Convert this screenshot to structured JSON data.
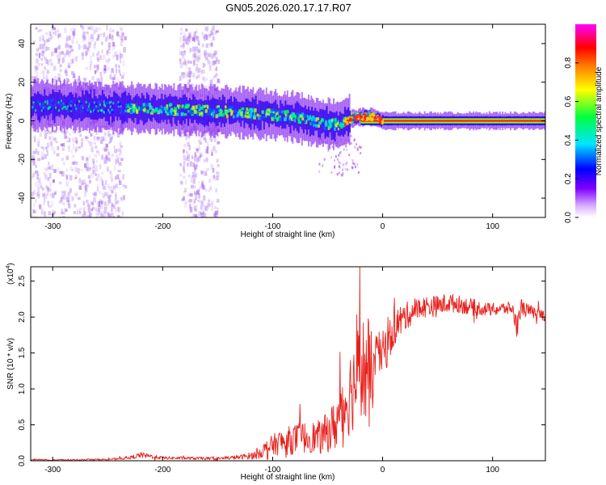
{
  "figure_title": "GN05.2026.020.17.17.R07",
  "colors": {
    "snr_line": "#e8201c",
    "axis": "#000000",
    "background": "#ffffff"
  },
  "chart_data": [
    {
      "type": "heatmap",
      "panel": "top",
      "title": "GN05.2026.020.17.17.R07",
      "xlabel": "Height of straight line (km)",
      "ylabel": "Frequency (Hz)",
      "xlim": [
        -320,
        148
      ],
      "ylim": [
        -50,
        50
      ],
      "xticks": [
        -300,
        -200,
        -100,
        0,
        100
      ],
      "xtick_labels": [
        "-300",
        "-200",
        "-100",
        "0",
        "100"
      ],
      "yticks": [
        -40,
        -20,
        0,
        20,
        40
      ],
      "ytick_labels": [
        "-40",
        "-20",
        "0",
        "20",
        "40"
      ],
      "colorbar": {
        "label": "Normalized spectral amplitude",
        "range": [
          0,
          1
        ],
        "ticks": [
          0.0,
          0.2,
          0.4,
          0.6,
          0.8
        ],
        "tick_labels": [
          "0.0",
          "0.2",
          "0.4",
          "0.6",
          "0.8"
        ],
        "colormap": [
          "#ffffff",
          "#7f00ff",
          "#0000ff",
          "#00e5ff",
          "#00ff00",
          "#ffff00",
          "#ff8000",
          "#ff0000",
          "#ff00ff"
        ]
      },
      "ridge": {
        "x": [
          -320,
          -300,
          -250,
          -200,
          -150,
          -120,
          -100,
          -80,
          -60,
          -40,
          -30,
          -20,
          -10,
          0,
          50,
          100,
          120,
          130,
          148
        ],
        "y": [
          8,
          8,
          7,
          6,
          5,
          4,
          3,
          2,
          -1,
          -2,
          1,
          2,
          2,
          0,
          0,
          0,
          0,
          0,
          0
        ]
      },
      "scatter_bands_x": [
        [
          -320,
          -235
        ],
        [
          -185,
          -150
        ]
      ]
    },
    {
      "type": "line",
      "panel": "bottom",
      "xlabel": "Height of straight line (km)",
      "ylabel": "SNR (10 * v/v)",
      "scale_label": "(x10",
      "scale_exponent": "4",
      "xlim": [
        -320,
        148
      ],
      "ylim": [
        0,
        2.7
      ],
      "xticks": [
        -300,
        -200,
        -100,
        0,
        100
      ],
      "xtick_labels": [
        "-300",
        "-200",
        "-100",
        "0",
        "100"
      ],
      "yticks": [
        0,
        0.5,
        1.0,
        1.5,
        2.0,
        2.5
      ],
      "ytick_labels": [
        "0.0",
        "0.5",
        "1.0",
        "1.5",
        "2.0",
        "2.5"
      ],
      "series": [
        {
          "name": "SNR",
          "x": [
            -320,
            -300,
            -250,
            -230,
            -220,
            -200,
            -150,
            -130,
            -115,
            -105,
            -95,
            -85,
            -75,
            -65,
            -55,
            -50,
            -45,
            -40,
            -35,
            -30,
            -25,
            -20,
            -15,
            -12,
            -10,
            -8,
            -5,
            0,
            5,
            10,
            20,
            30,
            40,
            50,
            60,
            70,
            80,
            90,
            100,
            110,
            118,
            122,
            126,
            130,
            140,
            148
          ],
          "y": [
            0.02,
            0.01,
            0.02,
            0.04,
            0.08,
            0.04,
            0.03,
            0.05,
            0.08,
            0.18,
            0.25,
            0.28,
            0.32,
            0.33,
            0.32,
            0.42,
            0.45,
            0.6,
            0.75,
            0.95,
            1.1,
            1.35,
            1.2,
            1.3,
            1.15,
            1.3,
            1.45,
            1.5,
            1.62,
            1.85,
            2.0,
            2.1,
            2.15,
            2.15,
            2.2,
            2.18,
            2.14,
            2.12,
            2.1,
            2.12,
            2.12,
            1.85,
            2.15,
            2.1,
            2.05,
            2.02
          ],
          "noise_amp": [
            0.01,
            0.01,
            0.01,
            0.02,
            0.04,
            0.02,
            0.02,
            0.03,
            0.06,
            0.12,
            0.17,
            0.2,
            0.22,
            0.22,
            0.24,
            0.3,
            0.35,
            0.42,
            0.5,
            0.6,
            0.65,
            0.7,
            0.8,
            0.75,
            0.6,
            0.45,
            0.35,
            0.3,
            0.3,
            0.28,
            0.2,
            0.16,
            0.15,
            0.15,
            0.14,
            0.12,
            0.12,
            0.1,
            0.09,
            0.09,
            0.09,
            0.15,
            0.12,
            0.1,
            0.08,
            0.08
          ]
        }
      ]
    }
  ]
}
